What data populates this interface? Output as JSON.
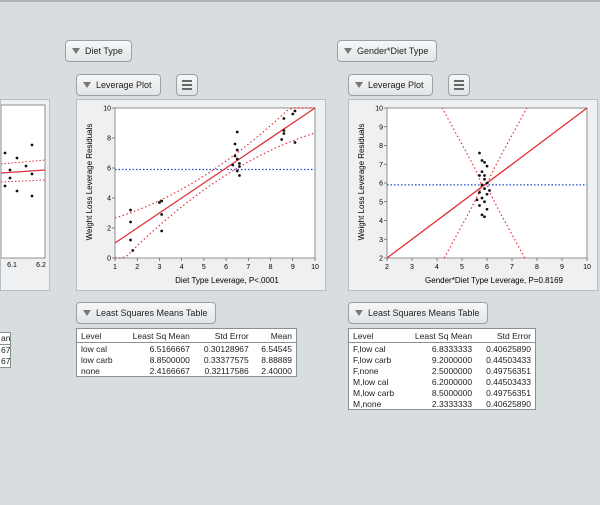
{
  "left_partial": {
    "xticks": [
      "6.1",
      "6.2"
    ],
    "table_header": "an",
    "table_rows": [
      "67",
      "67"
    ]
  },
  "panels": [
    {
      "title": "Diet Type",
      "leverage_label": "Leverage Plot",
      "lsm_label": "Least Squares Means Table",
      "xlabel": "Diet Type Leverage, P<.0001",
      "ylabel": "Weight Loss Leverage Residuals",
      "table_headers": [
        "Level",
        "Least Sq Mean",
        "Std Error",
        "Mean"
      ],
      "table_rows": [
        [
          "low cal",
          "6.5166667",
          "0.30128967",
          "6.54545"
        ],
        [
          "low carb",
          "8.8500000",
          "0.33377575",
          "8.88889"
        ],
        [
          "none",
          "2.4166667",
          "0.32117586",
          "2.40000"
        ]
      ]
    },
    {
      "title": "Gender*Diet Type",
      "leverage_label": "Leverage Plot",
      "lsm_label": "Least Squares Means Table",
      "xlabel": "Gender*Diet Type Leverage, P=0.8169",
      "ylabel": "Weight Loss Leverage Residuals",
      "table_headers": [
        "Level",
        "Least Sq Mean",
        "Std Error"
      ],
      "table_rows": [
        [
          "F,low cal",
          "6.8333333",
          "0.40625890"
        ],
        [
          "F,low carb",
          "9.2000000",
          "0.44503433"
        ],
        [
          "F,none",
          "2.5000000",
          "0.49756351"
        ],
        [
          "M,low cal",
          "6.2000000",
          "0.44503433"
        ],
        [
          "M,low carb",
          "8.5000000",
          "0.49756351"
        ],
        [
          "M,none",
          "2.3333333",
          "0.40625890"
        ]
      ]
    }
  ],
  "chart_data": [
    {
      "type": "scatter",
      "xlabel": "Diet Type Leverage, P<.0001",
      "ylabel": "Weight Loss Leverage Residuals",
      "xlim": [
        1,
        10
      ],
      "ylim": [
        0,
        10
      ],
      "xticks": [
        1,
        2,
        3,
        4,
        5,
        6,
        7,
        8,
        9,
        10
      ],
      "yticks": [
        0,
        2,
        4,
        6,
        8,
        10
      ],
      "mean_line": 5.9,
      "fit_line": [
        [
          1,
          1.0
        ],
        [
          10,
          10.0
        ]
      ],
      "points": [
        [
          1.7,
          3.2
        ],
        [
          1.7,
          1.2
        ],
        [
          1.8,
          0.5
        ],
        [
          1.7,
          2.4
        ],
        [
          3.0,
          3.7
        ],
        [
          3.1,
          3.8
        ],
        [
          3.1,
          2.9
        ],
        [
          3.1,
          1.8
        ],
        [
          6.4,
          7.6
        ],
        [
          6.5,
          8.4
        ],
        [
          6.5,
          7.2
        ],
        [
          6.4,
          6.8
        ],
        [
          6.5,
          6.6
        ],
        [
          6.6,
          6.3
        ],
        [
          6.6,
          6.1
        ],
        [
          6.5,
          5.8
        ],
        [
          6.6,
          5.5
        ],
        [
          6.3,
          6.2
        ],
        [
          8.6,
          9.3
        ],
        [
          8.6,
          8.5
        ],
        [
          8.6,
          8.3
        ],
        [
          8.5,
          7.9
        ],
        [
          9.1,
          9.8
        ],
        [
          9.0,
          9.6
        ],
        [
          9.1,
          7.7
        ]
      ]
    },
    {
      "type": "scatter",
      "xlabel": "Gender*Diet Type Leverage, P=0.8169",
      "ylabel": "Weight Loss Leverage Residuals",
      "xlim": [
        2,
        10
      ],
      "ylim": [
        2,
        10
      ],
      "xticks": [
        2,
        3,
        4,
        5,
        6,
        7,
        8,
        9,
        10
      ],
      "yticks": [
        2,
        3,
        4,
        5,
        6,
        7,
        8,
        9,
        10
      ],
      "mean_line": 5.9,
      "fit_line": [
        [
          2,
          2.0
        ],
        [
          10,
          10.0
        ]
      ],
      "points": [
        [
          5.7,
          7.6
        ],
        [
          5.8,
          7.2
        ],
        [
          5.9,
          7.1
        ],
        [
          6.0,
          6.9
        ],
        [
          5.8,
          6.6
        ],
        [
          5.7,
          6.4
        ],
        [
          5.9,
          6.2
        ],
        [
          6.0,
          6.0
        ],
        [
          5.8,
          5.9
        ],
        [
          5.9,
          5.7
        ],
        [
          5.7,
          5.5
        ],
        [
          6.0,
          5.4
        ],
        [
          5.8,
          5.2
        ],
        [
          5.9,
          5.0
        ],
        [
          5.7,
          4.8
        ],
        [
          6.0,
          4.6
        ],
        [
          5.8,
          4.3
        ],
        [
          5.9,
          4.2
        ],
        [
          5.6,
          5.1
        ],
        [
          6.1,
          5.6
        ],
        [
          5.9,
          6.4
        ]
      ]
    }
  ]
}
